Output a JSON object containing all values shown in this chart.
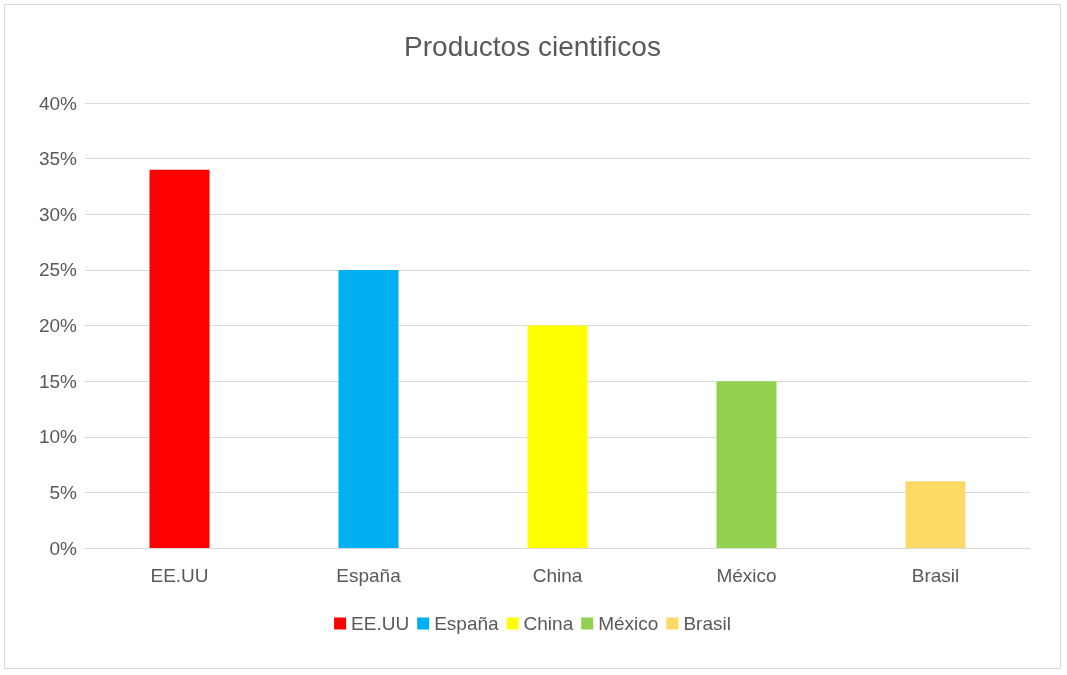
{
  "chart_data": {
    "type": "bar",
    "title": "Productos cientificos",
    "categories": [
      "EE.UU",
      "España",
      "China",
      "México",
      "Brasil"
    ],
    "series": [
      {
        "name": "EE.UU",
        "color": "#ff0000",
        "values": [
          34,
          null,
          null,
          null,
          null
        ]
      },
      {
        "name": "España",
        "color": "#00b0f0",
        "values": [
          null,
          25,
          null,
          null,
          null
        ]
      },
      {
        "name": "China",
        "color": "#ffff00",
        "values": [
          null,
          null,
          20,
          null,
          null
        ]
      },
      {
        "name": "México",
        "color": "#92d050",
        "values": [
          null,
          null,
          null,
          15,
          null
        ]
      },
      {
        "name": "Brasil",
        "color": "#ffd966",
        "values": [
          null,
          null,
          null,
          null,
          6
        ]
      }
    ],
    "ylim": [
      0,
      40
    ],
    "yticks": [
      {
        "value": 0,
        "label": "0%"
      },
      {
        "value": 5,
        "label": "5%"
      },
      {
        "value": 10,
        "label": "10%"
      },
      {
        "value": 15,
        "label": "15%"
      },
      {
        "value": 20,
        "label": "20%"
      },
      {
        "value": 25,
        "label": "25%"
      },
      {
        "value": 30,
        "label": "30%"
      },
      {
        "value": 35,
        "label": "35%"
      },
      {
        "value": 40,
        "label": "40%"
      }
    ],
    "grid": "y",
    "legend": "bottom"
  }
}
